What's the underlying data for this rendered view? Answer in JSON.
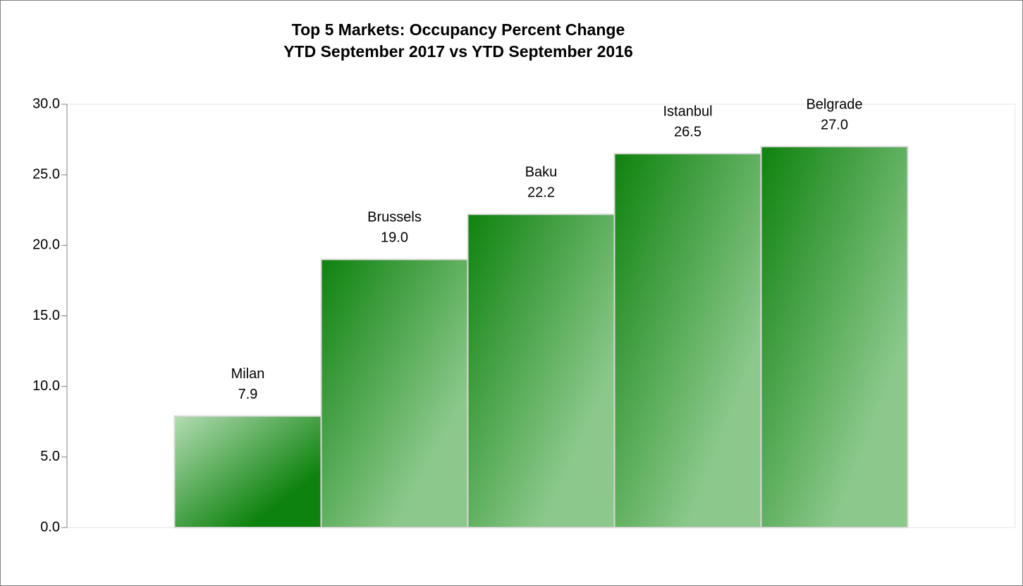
{
  "chart_data": {
    "type": "bar",
    "title": [
      "Top 5 Markets: Occupancy Percent Change",
      "YTD September 2017 vs YTD September 2016"
    ],
    "categories": [
      "Milan",
      "Brussels",
      "Baku",
      "Istanbul",
      "Belgrade"
    ],
    "values": [
      7.9,
      19.0,
      22.2,
      26.5,
      27.0
    ],
    "value_labels": [
      "7.9",
      "19.0",
      "22.2",
      "26.5",
      "27.0"
    ],
    "colors": [
      [
        "#b4dcb4",
        "#0e820e"
      ],
      [
        "#0e820e",
        "#8cc88c"
      ],
      [
        "#0e820e",
        "#8cc88c"
      ],
      [
        "#0e820e",
        "#8cc88c"
      ],
      [
        "#0e820e",
        "#8cc88c"
      ]
    ],
    "ylim": [
      0,
      30
    ],
    "yticks": [
      {
        "value": 0,
        "label": "0.0"
      },
      {
        "value": 5,
        "label": "5.0"
      },
      {
        "value": 10,
        "label": "10.0"
      },
      {
        "value": 15,
        "label": "15.0"
      },
      {
        "value": 20,
        "label": "20.0"
      },
      {
        "value": 25,
        "label": "25.0"
      },
      {
        "value": 30,
        "label": "30.0"
      }
    ],
    "grid": false
  }
}
